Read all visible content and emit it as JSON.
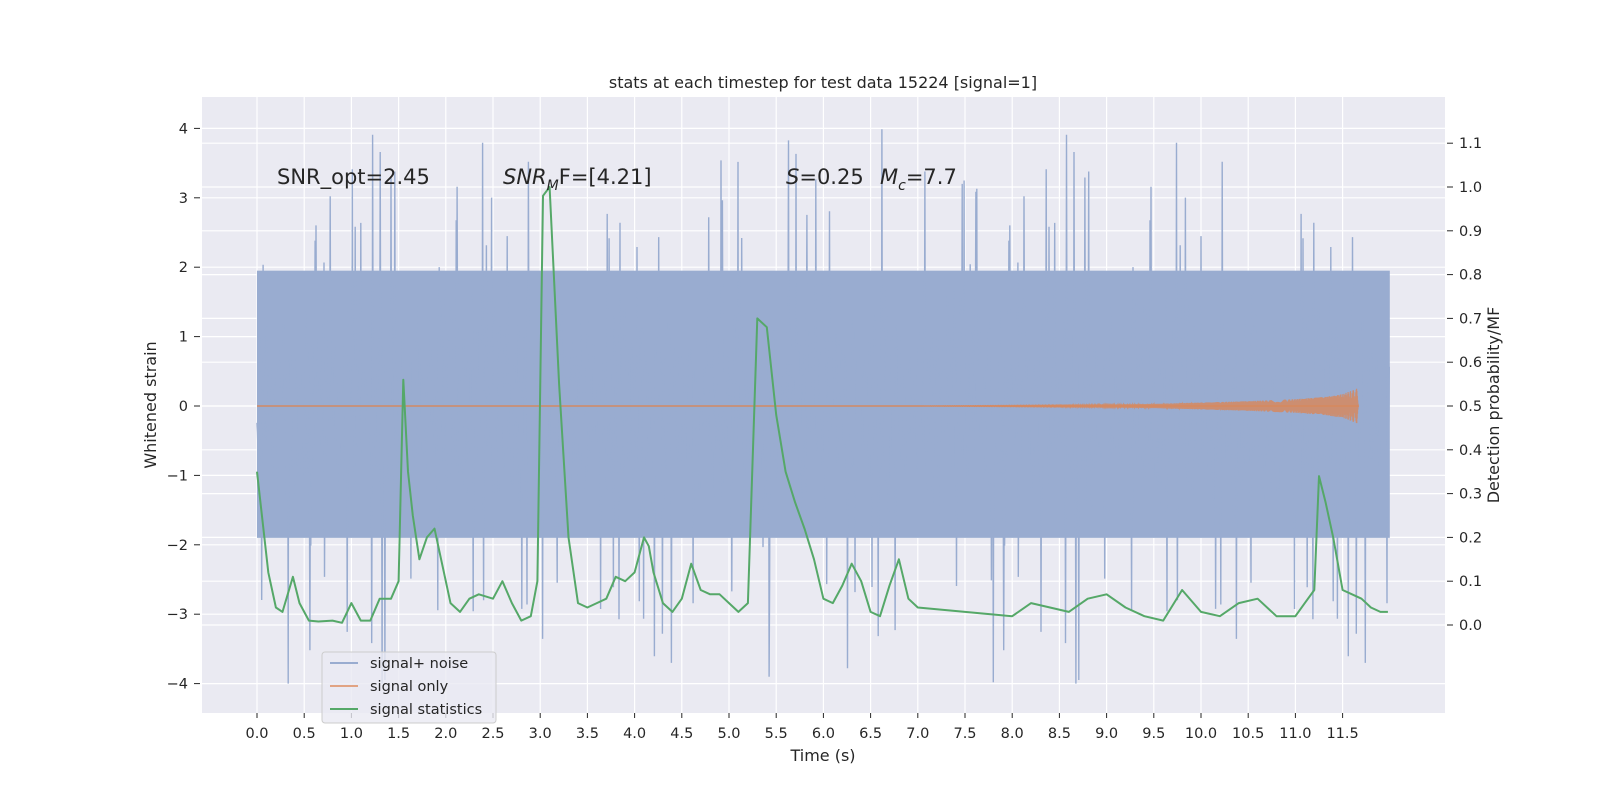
{
  "chart_data": {
    "type": "line",
    "title": "stats at each timestep for test data 15224 [signal=1]",
    "xlabel": "Time (s)",
    "ylabel_left": "Whitened strain",
    "ylabel_right": "Detection probability/MF",
    "xlim": [
      -0.6,
      12.6
    ],
    "ylim_left": [
      -4.45,
      4.45
    ],
    "ylim_right": [
      -0.2,
      1.2
    ],
    "x_ticks": [
      "0.0",
      "0.5",
      "1.0",
      "1.5",
      "2.0",
      "2.5",
      "3.0",
      "3.5",
      "4.0",
      "4.5",
      "5.0",
      "5.5",
      "6.0",
      "6.5",
      "7.0",
      "7.5",
      "8.0",
      "8.5",
      "9.0",
      "9.5",
      "10.0",
      "10.5",
      "11.0",
      "11.5"
    ],
    "y_ticks_left": [
      "4",
      "3",
      "2",
      "1",
      "0",
      "−1",
      "−2",
      "−3",
      "−4"
    ],
    "y_ticks_right": [
      "1.1",
      "1.0",
      "0.9",
      "0.8",
      "0.7",
      "0.6",
      "0.5",
      "0.4",
      "0.3",
      "0.2",
      "0.1",
      "0.0"
    ],
    "grid": true,
    "legend_position": "lower-left",
    "annotations": {
      "snr_opt": "SNR_opt=2.45",
      "snr_mf_sym": "SNR",
      "snr_mf_sub": "M",
      "snr_mf_rest": "F=[4.21]",
      "s_sym": "S",
      "s_rest": "=0.25",
      "mc_sym": "M",
      "mc_sub": "c",
      "mc_rest": "=7.7"
    },
    "colors": {
      "background": "#eaeaf2",
      "grid": "#ffffff",
      "noise": "#99acd0",
      "signal": "#dd8452",
      "stats": "#55a868"
    },
    "series": [
      {
        "name": "signal+ noise",
        "axis": "left",
        "kind": "noise",
        "x_range": [
          0.0,
          12.0
        ],
        "core_band": [
          -1.9,
          1.95
        ],
        "spike_range": [
          -4.0,
          4.1
        ]
      },
      {
        "name": "signal only",
        "axis": "left",
        "kind": "chirp",
        "x": [
          0.0,
          7.0,
          8.0,
          9.0,
          9.5,
          10.0,
          10.5,
          11.0,
          11.3,
          11.5,
          11.65,
          11.67
        ],
        "amplitude": [
          0.0,
          0.0,
          0.01,
          0.02,
          0.03,
          0.05,
          0.07,
          0.1,
          0.13,
          0.17,
          0.25,
          0.0
        ]
      },
      {
        "name": "signal statistics",
        "axis": "right",
        "kind": "line",
        "x": [
          0.0,
          0.12,
          0.2,
          0.27,
          0.38,
          0.45,
          0.55,
          0.65,
          0.8,
          0.9,
          1.0,
          1.1,
          1.2,
          1.3,
          1.42,
          1.5,
          1.55,
          1.6,
          1.65,
          1.72,
          1.8,
          1.88,
          1.95,
          2.05,
          2.15,
          2.25,
          2.35,
          2.5,
          2.6,
          2.7,
          2.8,
          2.9,
          2.97,
          3.03,
          3.1,
          3.2,
          3.3,
          3.4,
          3.5,
          3.6,
          3.7,
          3.8,
          3.9,
          4.0,
          4.1,
          4.15,
          4.2,
          4.3,
          4.4,
          4.5,
          4.6,
          4.7,
          4.8,
          4.9,
          5.0,
          5.1,
          5.2,
          5.3,
          5.4,
          5.5,
          5.6,
          5.7,
          5.8,
          5.9,
          6.0,
          6.1,
          6.2,
          6.3,
          6.4,
          6.5,
          6.6,
          6.7,
          6.8,
          6.9,
          7.0,
          7.5,
          8.0,
          8.2,
          8.4,
          8.6,
          8.8,
          9.0,
          9.2,
          9.4,
          9.6,
          9.8,
          10.0,
          10.2,
          10.4,
          10.6,
          10.8,
          11.0,
          11.1,
          11.2,
          11.25,
          11.32,
          11.4,
          11.5,
          11.6,
          11.7,
          11.8,
          11.9,
          11.98
        ],
        "values": [
          0.35,
          0.12,
          0.04,
          0.03,
          0.11,
          0.05,
          0.01,
          0.008,
          0.01,
          0.005,
          0.05,
          0.01,
          0.01,
          0.06,
          0.06,
          0.1,
          0.56,
          0.35,
          0.25,
          0.15,
          0.2,
          0.22,
          0.15,
          0.05,
          0.03,
          0.06,
          0.07,
          0.06,
          0.1,
          0.05,
          0.01,
          0.02,
          0.1,
          0.98,
          1.0,
          0.55,
          0.2,
          0.05,
          0.04,
          0.05,
          0.06,
          0.11,
          0.1,
          0.12,
          0.2,
          0.18,
          0.12,
          0.05,
          0.03,
          0.06,
          0.14,
          0.08,
          0.07,
          0.07,
          0.05,
          0.03,
          0.05,
          0.7,
          0.68,
          0.48,
          0.35,
          0.28,
          0.22,
          0.15,
          0.06,
          0.05,
          0.09,
          0.14,
          0.1,
          0.03,
          0.02,
          0.09,
          0.15,
          0.06,
          0.04,
          0.03,
          0.02,
          0.05,
          0.04,
          0.03,
          0.06,
          0.07,
          0.04,
          0.02,
          0.01,
          0.08,
          0.03,
          0.02,
          0.05,
          0.06,
          0.02,
          0.02,
          0.05,
          0.08,
          0.34,
          0.28,
          0.2,
          0.08,
          0.07,
          0.06,
          0.04,
          0.03,
          0.03
        ]
      }
    ]
  }
}
